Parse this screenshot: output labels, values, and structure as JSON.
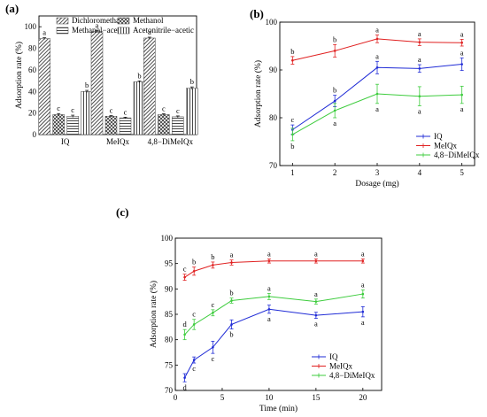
{
  "chart_data": [
    {
      "panel_label": "(a)",
      "type": "bar",
      "categories": [
        "IQ",
        "MeIQx",
        "4,8−DiMeIQx"
      ],
      "ylabel": "Adsorption rate (%)",
      "xlabel": "",
      "ylim": [
        0,
        110
      ],
      "yticks": [
        0,
        20,
        40,
        60,
        80,
        100
      ],
      "legend_position": "top",
      "series": [
        {
          "name": "Dichloromethane",
          "pattern": "diagonal-dense",
          "values": [
            89,
            95.5,
            89.5
          ],
          "errors": [
            0.8,
            0.8,
            0.8
          ],
          "letters": [
            "a",
            "a",
            "a"
          ]
        },
        {
          "name": "Methanol",
          "pattern": "crosshatch",
          "values": [
            18.5,
            17,
            18.5
          ],
          "errors": [
            1.0,
            0.6,
            0.8
          ],
          "letters": [
            "c",
            "c",
            "c"
          ]
        },
        {
          "name": "Methanol−acetic",
          "pattern": "horizontal",
          "values": [
            17,
            15.5,
            16.5
          ],
          "errors": [
            1.0,
            0.6,
            0.8
          ],
          "letters": [
            "c",
            "c",
            "c"
          ]
        },
        {
          "name": "Acetonitrile−acetic",
          "pattern": "vertical",
          "values": [
            40,
            49,
            43
          ],
          "errors": [
            1.0,
            0.8,
            1.2
          ],
          "letters": [
            "b",
            "b",
            "b"
          ]
        }
      ]
    },
    {
      "panel_label": "(b)",
      "type": "line",
      "xlabel": "Dosage (mg)",
      "ylabel": "Adsorption rate (%)",
      "x": [
        1,
        2,
        3,
        4,
        5
      ],
      "xlim": [
        0.7,
        5.3
      ],
      "ylim": [
        70,
        100
      ],
      "xticks": [
        1,
        2,
        3,
        4,
        5
      ],
      "yticks": [
        70,
        80,
        90,
        100
      ],
      "legend_position": "bottom-right",
      "series": [
        {
          "name": "IQ",
          "color": "#1f2bd6",
          "values": [
            77.5,
            83.5,
            90.5,
            90.3,
            91.2
          ],
          "errors": [
            1.0,
            1.2,
            1.3,
            0.8,
            1.3
          ],
          "letters": [
            "c",
            "b",
            "a",
            "a",
            "a"
          ],
          "letter_side": "above"
        },
        {
          "name": "MeIQx",
          "color": "#e02020",
          "values": [
            92,
            94,
            96.5,
            95.8,
            95.7
          ],
          "errors": [
            0.8,
            1.3,
            0.8,
            0.7,
            0.7
          ],
          "letters": [
            "b",
            "b",
            "a",
            "a",
            "a"
          ],
          "letter_side": "above"
        },
        {
          "name": "4,8−DiMeIQx",
          "color": "#3dcc3d",
          "values": [
            76.5,
            81.5,
            85,
            84.5,
            84.8
          ],
          "errors": [
            1.3,
            1.5,
            2.0,
            2.0,
            1.8
          ],
          "letters": [
            "b",
            "a",
            "a",
            "a",
            "a"
          ],
          "letter_side": "below"
        }
      ]
    },
    {
      "panel_label": "(c)",
      "type": "line",
      "xlabel": "Time (min)",
      "ylabel": "Adsorption rate (%)",
      "x": [
        1,
        2,
        4,
        6,
        10,
        15,
        20
      ],
      "xlim": [
        0,
        22
      ],
      "ylim": [
        70,
        100
      ],
      "xticks": [
        0,
        5,
        10,
        15,
        20
      ],
      "yticks": [
        70,
        75,
        80,
        85,
        90,
        95,
        100
      ],
      "legend_position": "bottom-right",
      "series": [
        {
          "name": "IQ",
          "color": "#1f2bd6",
          "values": [
            72.5,
            76,
            78.5,
            83,
            86,
            84.8,
            85.5
          ],
          "errors": [
            0.8,
            0.6,
            1.2,
            0.9,
            0.8,
            0.6,
            1.0
          ],
          "letters": [
            "d",
            "c",
            "c",
            "b",
            "a",
            "a",
            "a"
          ],
          "letter_side": "below"
        },
        {
          "name": "MeIQx",
          "color": "#e02020",
          "values": [
            92.3,
            93.5,
            94.7,
            95.2,
            95.5,
            95.5,
            95.5
          ],
          "errors": [
            0.6,
            0.8,
            0.6,
            0.5,
            0.4,
            0.4,
            0.4
          ],
          "letters": [
            "c",
            "b",
            "b",
            "a",
            "a",
            "a",
            "a"
          ],
          "letter_side": "above"
        },
        {
          "name": "4,8−DiMeIQx",
          "color": "#3dcc3d",
          "values": [
            81,
            83,
            85.3,
            87.7,
            88.5,
            87.5,
            89
          ],
          "errors": [
            1.0,
            1.0,
            0.6,
            0.5,
            0.6,
            0.5,
            0.8
          ],
          "letters": [
            "d",
            "c",
            "c",
            "b",
            "a",
            "a",
            "a"
          ],
          "letter_side": "above"
        }
      ]
    }
  ]
}
